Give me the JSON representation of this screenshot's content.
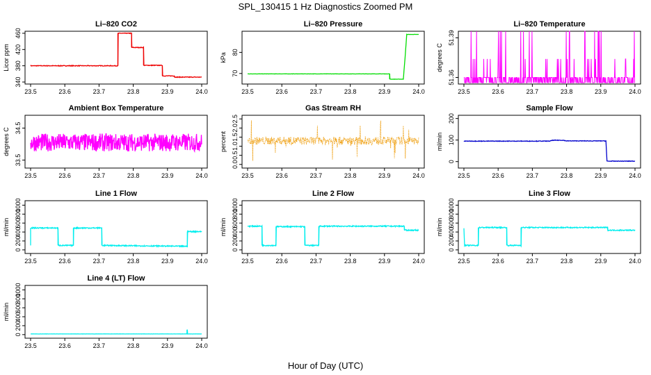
{
  "figure": {
    "title": "SPL_130415  1 Hz Diagnostics Zoomed PM",
    "xlabel": "Hour of Day (UTC)"
  },
  "chart_data": [
    {
      "type": "line",
      "title": "Li–820 CO2",
      "ylabel": "Licor ppm",
      "xlim": [
        23.5,
        24.0
      ],
      "ylim": [
        335,
        465
      ],
      "yticks": [
        "340",
        "380",
        "420",
        "460"
      ],
      "xticks": [
        "23.5",
        "23.6",
        "23.7",
        "23.8",
        "23.9",
        "24.0"
      ],
      "color": "#ee0000",
      "noise": 0.8,
      "series": [
        {
          "x": [
            23.5,
            23.755,
            23.755,
            23.795,
            23.795,
            23.83,
            23.83,
            23.885,
            23.885,
            23.92,
            23.92,
            24.0
          ],
          "y": [
            380,
            380,
            460,
            460,
            425,
            425,
            381,
            381,
            355,
            355,
            352,
            352
          ]
        }
      ]
    },
    {
      "type": "line",
      "title": "Li–820 Pressure",
      "ylabel": "kPa",
      "xlim": [
        23.5,
        24.0
      ],
      "ylim": [
        65,
        90
      ],
      "yticks": [
        "70",
        "80"
      ],
      "xticks": [
        "23.5",
        "23.6",
        "23.7",
        "23.8",
        "23.9",
        "24.0"
      ],
      "color": "#00dd00",
      "noise": 0.05,
      "series": [
        {
          "x": [
            23.5,
            23.915,
            23.915,
            23.955,
            23.96,
            23.965,
            24.0
          ],
          "y": [
            69.8,
            69.8,
            67.3,
            67.3,
            77,
            88.5,
            88.5
          ]
        }
      ]
    },
    {
      "type": "line",
      "title": "Li–820 Temperature",
      "ylabel": "degrees C",
      "xlim": [
        23.5,
        24.0
      ],
      "ylim": [
        51.355,
        51.395
      ],
      "yticks": [
        "51.36",
        "51.39"
      ],
      "xticks": [
        "23.5",
        "23.6",
        "23.7",
        "23.8",
        "23.9",
        "24.0"
      ],
      "color": "#ff00ff",
      "levels": [
        51.356,
        51.36,
        51.374,
        51.395
      ],
      "levels_prob": [
        0.5,
        0.42,
        0.045,
        0.035
      ],
      "series": []
    },
    {
      "type": "line",
      "title": "Ambient Box Temperature",
      "ylabel": "degrees C",
      "xlim": [
        23.5,
        24.0
      ],
      "ylim": [
        33.25,
        34.9
      ],
      "yticks": [
        "33.5",
        "34.5"
      ],
      "xticks": [
        "23.5",
        "23.6",
        "23.7",
        "23.8",
        "23.9",
        "24.0"
      ],
      "color": "#ff00ff",
      "noise": 0.28,
      "series": [
        {
          "x": [
            23.5,
            24.0
          ],
          "y": [
            34.05,
            34.05
          ]
        }
      ]
    },
    {
      "type": "scatter",
      "title": "Gas Stream RH",
      "ylabel": "percent",
      "xlim": [
        23.5,
        24.0
      ],
      "ylim": [
        -0.2,
        2.7
      ],
      "yticks": [
        "0.0",
        "0.5",
        "1.0",
        "1.5",
        "2.0",
        "2.5"
      ],
      "xticks": [
        "23.5",
        "23.6",
        "23.7",
        "23.8",
        "23.9",
        "24.0"
      ],
      "color": "#ee9900",
      "noise": 0.22,
      "series": [
        {
          "x": [
            23.5,
            24.0
          ],
          "y": [
            1.3,
            1.3
          ]
        }
      ]
    },
    {
      "type": "line",
      "title": "Sample Flow",
      "ylabel": "ml/min",
      "xlim": [
        23.5,
        24.0
      ],
      "ylim": [
        -30,
        215
      ],
      "yticks": [
        "0",
        "100",
        "200"
      ],
      "xticks": [
        "23.5",
        "23.6",
        "23.7",
        "23.8",
        "23.9",
        "24.0"
      ],
      "color": "#0000cc",
      "noise": 1.2,
      "series": [
        {
          "x": [
            23.5,
            23.75,
            23.76,
            23.79,
            23.8,
            23.915,
            23.918,
            24.0
          ],
          "y": [
            95,
            95,
            99,
            99,
            96,
            96,
            2,
            2
          ]
        }
      ]
    },
    {
      "type": "line",
      "title": "Line 1 Flow",
      "ylabel": "ml/min",
      "xlim": [
        23.5,
        24.0
      ],
      "ylim": [
        -80,
        1100
      ],
      "yticks": [
        "0",
        "200",
        "400",
        "600",
        "800",
        "1000"
      ],
      "xticks": [
        "23.5",
        "23.6",
        "23.7",
        "23.8",
        "23.9",
        "24.0"
      ],
      "color": "#00eeee",
      "noise": 12,
      "series": [
        {
          "x": [
            23.5,
            23.5,
            23.58,
            23.58,
            23.625,
            23.625,
            23.708,
            23.708,
            23.958,
            23.958,
            24.0
          ],
          "y": [
            100,
            490,
            490,
            100,
            100,
            490,
            490,
            100,
            80,
            410,
            410
          ]
        }
      ]
    },
    {
      "type": "line",
      "title": "Line 2 Flow",
      "ylabel": "ml/min",
      "xlim": [
        23.5,
        24.0
      ],
      "ylim": [
        -80,
        1100
      ],
      "yticks": [
        "0",
        "200",
        "400",
        "600",
        "800",
        "1000"
      ],
      "xticks": [
        "23.5",
        "23.6",
        "23.7",
        "23.8",
        "23.9",
        "24.0"
      ],
      "color": "#00eeee",
      "noise": 12,
      "series": [
        {
          "x": [
            23.5,
            23.542,
            23.542,
            23.583,
            23.583,
            23.667,
            23.667,
            23.708,
            23.708,
            23.958,
            23.958,
            24.0
          ],
          "y": [
            530,
            530,
            100,
            100,
            520,
            520,
            100,
            100,
            530,
            530,
            440,
            440
          ]
        }
      ]
    },
    {
      "type": "line",
      "title": "Line 3 Flow",
      "ylabel": "ml/min",
      "xlim": [
        23.5,
        24.0
      ],
      "ylim": [
        -80,
        1100
      ],
      "yticks": [
        "0",
        "200",
        "400",
        "600",
        "800",
        "1000"
      ],
      "xticks": [
        "23.5",
        "23.6",
        "23.7",
        "23.8",
        "23.9",
        "24.0"
      ],
      "color": "#00eeee",
      "noise": 12,
      "series": [
        {
          "x": [
            23.5,
            23.5,
            23.502,
            23.542,
            23.542,
            23.625,
            23.625,
            23.667,
            23.667,
            23.92,
            23.92,
            24.0
          ],
          "y": [
            480,
            480,
            100,
            100,
            500,
            500,
            100,
            100,
            500,
            500,
            440,
            440
          ]
        }
      ]
    },
    {
      "type": "line",
      "title": "Line 4 (LT) Flow",
      "ylabel": "ml/min",
      "xlim": [
        23.5,
        24.0
      ],
      "ylim": [
        -80,
        1100
      ],
      "yticks": [
        "0",
        "200",
        "400",
        "600",
        "800",
        "1000"
      ],
      "xticks": [
        "23.5",
        "23.6",
        "23.7",
        "23.8",
        "23.9",
        "24.0"
      ],
      "color": "#00eeee",
      "noise": 2,
      "series": [
        {
          "x": [
            23.5,
            23.957,
            23.957,
            23.958,
            23.958,
            24.0
          ],
          "y": [
            15,
            15,
            110,
            110,
            15,
            15
          ]
        }
      ]
    }
  ]
}
